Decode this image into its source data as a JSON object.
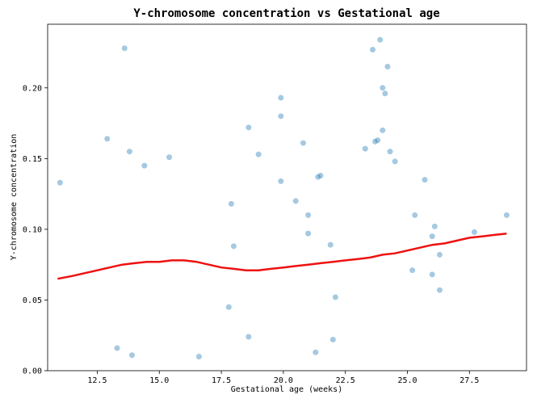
{
  "chart_data": {
    "type": "scatter",
    "title": "Y-chromosome concentration vs Gestational age",
    "xlabel": "Gestational age (weeks)",
    "ylabel": "Y-chromosome concentration",
    "xlim": [
      10.5,
      29.8
    ],
    "ylim": [
      0.0,
      0.245
    ],
    "x_ticks": [
      12.5,
      15.0,
      17.5,
      20.0,
      22.5,
      25.0,
      27.5
    ],
    "x_tick_labels": [
      "12.5",
      "15.0",
      "17.5",
      "20.0",
      "22.5",
      "25.0",
      "27.5"
    ],
    "y_ticks": [
      0.0,
      0.05,
      0.1,
      0.15,
      0.2
    ],
    "y_tick_labels": [
      "0.00",
      "0.05",
      "0.10",
      "0.15",
      "0.20"
    ],
    "grid": false,
    "series": [
      {
        "kind": "points",
        "color": "#1f77b4",
        "alpha": 0.4,
        "points": [
          [
            13.6,
            0.228
          ],
          [
            23.6,
            0.227
          ],
          [
            23.9,
            0.234
          ],
          [
            24.2,
            0.215
          ],
          [
            24.0,
            0.2
          ],
          [
            19.9,
            0.193
          ],
          [
            24.1,
            0.196
          ],
          [
            19.9,
            0.18
          ],
          [
            18.6,
            0.172
          ],
          [
            12.9,
            0.164
          ],
          [
            23.8,
            0.163
          ],
          [
            24.0,
            0.17
          ],
          [
            20.8,
            0.161
          ],
          [
            15.4,
            0.151
          ],
          [
            23.7,
            0.162
          ],
          [
            24.3,
            0.155
          ],
          [
            19.0,
            0.153
          ],
          [
            13.8,
            0.155
          ],
          [
            23.3,
            0.157
          ],
          [
            24.5,
            0.148
          ],
          [
            25.7,
            0.135
          ],
          [
            21.4,
            0.137
          ],
          [
            21.5,
            0.138
          ],
          [
            11.0,
            0.133
          ],
          [
            14.4,
            0.145
          ],
          [
            29.0,
            0.11
          ],
          [
            27.7,
            0.098
          ],
          [
            26.1,
            0.102
          ],
          [
            26.0,
            0.095
          ],
          [
            25.3,
            0.11
          ],
          [
            26.3,
            0.082
          ],
          [
            26.0,
            0.068
          ],
          [
            26.3,
            0.057
          ],
          [
            25.2,
            0.071
          ],
          [
            21.3,
            0.013
          ],
          [
            22.0,
            0.022
          ],
          [
            13.9,
            0.011
          ],
          [
            16.6,
            0.01
          ],
          [
            13.3,
            0.016
          ],
          [
            18.6,
            0.024
          ],
          [
            22.1,
            0.052
          ],
          [
            21.9,
            0.089
          ],
          [
            21.0,
            0.11
          ],
          [
            21.0,
            0.097
          ],
          [
            20.5,
            0.12
          ],
          [
            19.9,
            0.134
          ],
          [
            17.9,
            0.118
          ],
          [
            18.0,
            0.088
          ],
          [
            17.8,
            0.045
          ]
        ]
      },
      {
        "kind": "trend",
        "name": "",
        "color": "#ee1111",
        "points": [
          [
            10.9,
            0.065
          ],
          [
            11.5,
            0.067
          ],
          [
            12.0,
            0.069
          ],
          [
            12.5,
            0.071
          ],
          [
            13.0,
            0.073
          ],
          [
            13.5,
            0.075
          ],
          [
            14.0,
            0.076
          ],
          [
            14.5,
            0.077
          ],
          [
            15.0,
            0.077
          ],
          [
            15.5,
            0.078
          ],
          [
            16.0,
            0.078
          ],
          [
            16.5,
            0.077
          ],
          [
            17.0,
            0.075
          ],
          [
            17.5,
            0.073
          ],
          [
            18.0,
            0.072
          ],
          [
            18.5,
            0.071
          ],
          [
            19.0,
            0.071
          ],
          [
            19.5,
            0.072
          ],
          [
            20.0,
            0.073
          ],
          [
            20.5,
            0.074
          ],
          [
            21.0,
            0.075
          ],
          [
            21.5,
            0.076
          ],
          [
            22.0,
            0.077
          ],
          [
            22.5,
            0.078
          ],
          [
            23.0,
            0.079
          ],
          [
            23.5,
            0.08
          ],
          [
            24.0,
            0.082
          ],
          [
            24.5,
            0.083
          ],
          [
            25.0,
            0.085
          ],
          [
            25.5,
            0.087
          ],
          [
            26.0,
            0.089
          ],
          [
            26.5,
            0.09
          ],
          [
            27.0,
            0.092
          ],
          [
            27.5,
            0.094
          ],
          [
            28.0,
            0.095
          ],
          [
            28.5,
            0.096
          ],
          [
            29.0,
            0.097
          ]
        ]
      }
    ]
  }
}
